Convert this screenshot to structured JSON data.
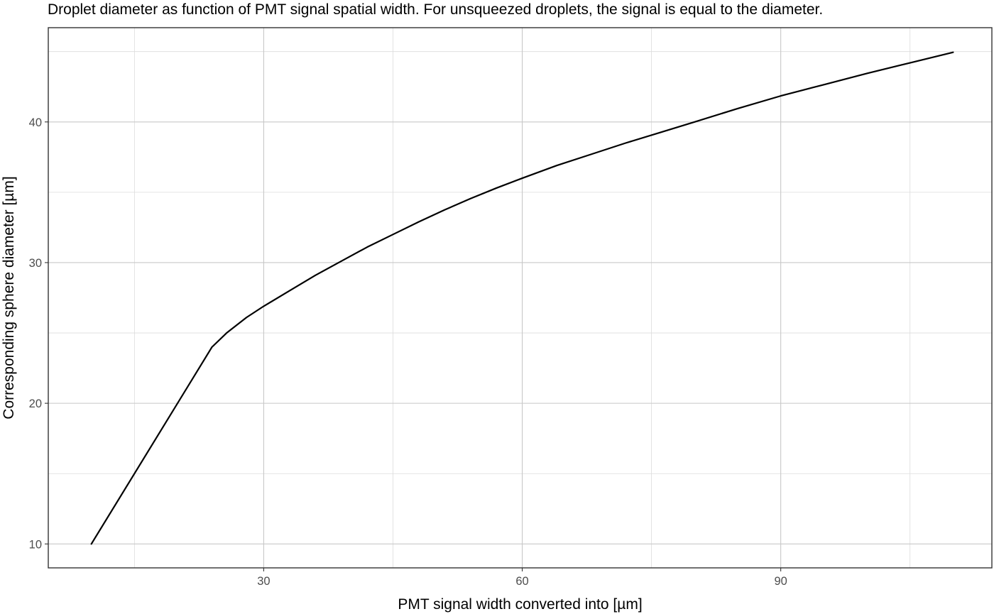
{
  "chart_data": {
    "type": "line",
    "title": "Droplet diameter as function of PMT signal spatial width. For unsqueezed droplets, the signal is equal to the diameter.",
    "xlabel": "PMT signal width converted into [µm]",
    "ylabel": "Corresponding sphere diameter [µm]",
    "xlim": [
      5,
      114.5
    ],
    "ylim": [
      8.3,
      46.7
    ],
    "x_ticks": [
      30,
      60,
      90
    ],
    "x_tick_labels": [
      "30",
      "60",
      "90"
    ],
    "x_minor_ticks": [
      15,
      45,
      75,
      105
    ],
    "y_ticks": [
      10,
      20,
      30,
      40
    ],
    "y_tick_labels": [
      "10",
      "20",
      "30",
      "40"
    ],
    "y_minor_ticks": [
      15,
      25,
      35,
      45
    ],
    "grid": true,
    "legend": "none",
    "series": [
      {
        "color": "#000000",
        "x": [
          10,
          24,
          25.7,
          28,
          30,
          33,
          36,
          39,
          42,
          45,
          48,
          51,
          54,
          57,
          60,
          64,
          68,
          72,
          76,
          80,
          85,
          90,
          95,
          100,
          105,
          110
        ],
        "y": [
          10,
          24,
          25,
          26.1,
          26.9,
          28,
          29.1,
          30.1,
          31.1,
          32,
          32.9,
          33.75,
          34.55,
          35.3,
          36,
          36.9,
          37.7,
          38.5,
          39.25,
          40,
          40.95,
          41.85,
          42.65,
          43.45,
          44.2,
          44.95
        ]
      }
    ]
  }
}
